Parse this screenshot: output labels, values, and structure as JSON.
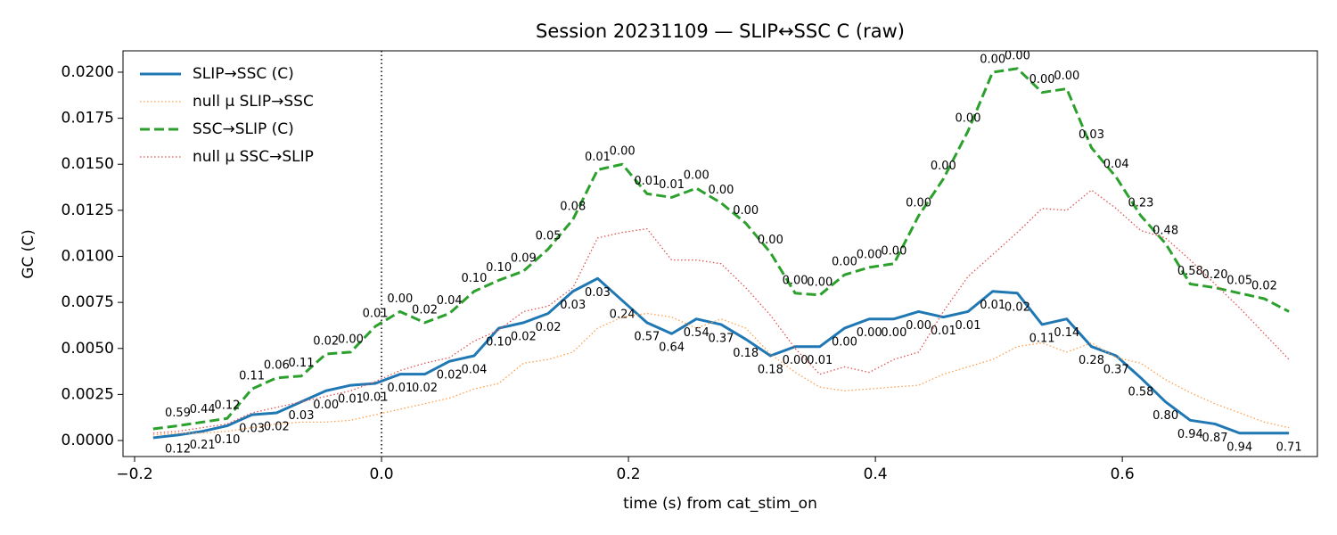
{
  "chart_data": {
    "type": "line",
    "title": "Session 20231109 — SLIP↔SSC C (raw)",
    "x_label": "time (s) from cat_stim_on",
    "y_label": "GC (C)",
    "x": [
      -0.185,
      -0.165,
      -0.145,
      -0.125,
      -0.105,
      -0.085,
      -0.065,
      -0.045,
      -0.025,
      -0.005,
      0.015,
      0.035,
      0.055,
      0.075,
      0.095,
      0.115,
      0.135,
      0.155,
      0.175,
      0.195,
      0.215,
      0.235,
      0.255,
      0.275,
      0.295,
      0.315,
      0.335,
      0.355,
      0.375,
      0.395,
      0.415,
      0.435,
      0.455,
      0.475,
      0.495,
      0.515,
      0.535,
      0.555,
      0.575,
      0.595,
      0.615,
      0.635,
      0.655,
      0.675,
      0.695,
      0.715,
      0.735
    ],
    "xlim": [
      -0.2094,
      0.758
    ],
    "xticks": [
      {
        "value": -0.2,
        "label": "−0.2"
      },
      {
        "value": 0,
        "label": "0.0"
      },
      {
        "value": 0.2,
        "label": "0.2"
      },
      {
        "value": 0.4,
        "label": "0.4"
      },
      {
        "value": 0.6,
        "label": "0.6"
      }
    ],
    "ylim": [
      -0.00087,
      0.02116
    ],
    "yticks": [
      {
        "value": 0,
        "label": "0.0000"
      },
      {
        "value": 0.0025,
        "label": "0.0025"
      },
      {
        "value": 0.005,
        "label": "0.0050"
      },
      {
        "value": 0.0075,
        "label": "0.0075"
      },
      {
        "value": 0.01,
        "label": "0.0100"
      },
      {
        "value": 0.0125,
        "label": "0.0125"
      },
      {
        "value": 0.015,
        "label": "0.0150"
      },
      {
        "value": 0.0175,
        "label": "0.0175"
      },
      {
        "value": 0.02,
        "label": "0.0200"
      }
    ],
    "vline": 0,
    "grid": false,
    "legend": "upper left",
    "series": [
      {
        "name": "SLIP→SSC (C)",
        "color": "#1f77b4",
        "style": "solid",
        "width": 3,
        "values": [
          0.00015,
          0.0003,
          0.0005,
          0.0008,
          0.0014,
          0.0015,
          0.0021,
          0.0027,
          0.003,
          0.0031,
          0.0036,
          0.0036,
          0.0043,
          0.0046,
          0.0061,
          0.0064,
          0.0069,
          0.0081,
          0.0088,
          0.0076,
          0.0064,
          0.0058,
          0.0066,
          0.0063,
          0.0055,
          0.0046,
          0.0051,
          0.0051,
          0.0061,
          0.0066,
          0.0066,
          0.007,
          0.0067,
          0.007,
          0.0081,
          0.008,
          0.0063,
          0.0066,
          0.0051,
          0.0046,
          0.0034,
          0.0021,
          0.0011,
          0.0009,
          0.0004,
          0.0004,
          0.0004
        ],
        "point_labels": [
          null,
          "0.12",
          "0.21",
          "0.10",
          "0.03",
          "0.02",
          "0.03",
          "0.00",
          "0.01",
          "0.01",
          "0.01",
          "0.02",
          "0.02",
          "0.04",
          "0.10",
          "0.02",
          "0.02",
          "0.03",
          "0.03",
          "0.24",
          "0.57",
          "0.64",
          "0.54",
          "0.37",
          "0.18",
          "0.18",
          "0.00",
          "0.01",
          "0.00",
          "0.00",
          "0.00",
          "0.00",
          "0.01",
          "0.01",
          "0.01",
          "0.02",
          "0.11",
          "0.14",
          "0.28",
          "0.37",
          "0.58",
          "0.80",
          "0.94",
          "0.87",
          "0.94",
          null,
          "0.71"
        ]
      },
      {
        "name": "null µ SLIP→SSC",
        "color": "#ff9f4a",
        "style": "dotted",
        "width": 1.3,
        "values": [
          0.0003,
          0.0004,
          0.0004,
          0.0005,
          0.0007,
          0.0009,
          0.001,
          0.001,
          0.0011,
          0.0014,
          0.0017,
          0.002,
          0.0023,
          0.0028,
          0.0031,
          0.0042,
          0.0044,
          0.0048,
          0.0061,
          0.0067,
          0.0069,
          0.0067,
          0.0061,
          0.0066,
          0.0061,
          0.0047,
          0.0037,
          0.0029,
          0.0027,
          0.0028,
          0.0029,
          0.003,
          0.0036,
          0.004,
          0.0044,
          0.0051,
          0.0053,
          0.0048,
          0.0053,
          0.0045,
          0.0042,
          0.0033,
          0.0026,
          0.002,
          0.0015,
          0.001,
          0.0007
        ]
      },
      {
        "name": "SSC→SLIP (C)",
        "color": "#2ca02c",
        "style": "dashed",
        "width": 3,
        "values": [
          0.00063,
          0.0008,
          0.001,
          0.0012,
          0.0028,
          0.0034,
          0.0035,
          0.0047,
          0.0048,
          0.0062,
          0.007,
          0.0064,
          0.0069,
          0.0081,
          0.0087,
          0.0092,
          0.0104,
          0.012,
          0.0147,
          0.015,
          0.0134,
          0.0132,
          0.0137,
          0.0129,
          0.0118,
          0.0102,
          0.008,
          0.0079,
          0.009,
          0.0094,
          0.0096,
          0.0122,
          0.0142,
          0.0168,
          0.02,
          0.0202,
          0.0189,
          0.0191,
          0.0159,
          0.0143,
          0.0122,
          0.0107,
          0.0085,
          0.0083,
          0.008,
          0.0077,
          0.007
        ],
        "point_labels": [
          null,
          "0.59",
          "0.44",
          "0.12",
          "0.11",
          "0.06",
          "0.11",
          "0.02",
          "0.00",
          "0.01",
          "0.00",
          "0.02",
          "0.04",
          "0.10",
          "0.10",
          "0.09",
          "0.05",
          "0.08",
          "0.01",
          "0.00",
          "0.01",
          "0.01",
          "0.00",
          "0.00",
          "0.00",
          "0.00",
          "0.00",
          "0.00",
          "0.00",
          "0.00",
          "0.00",
          "0.00",
          "0.00",
          "0.00",
          "0.00",
          "0.00",
          "0.00",
          "0.00",
          "0.03",
          "0.04",
          "0.23",
          "0.48",
          "0.58",
          "0.20",
          "0.05",
          "0.02",
          null
        ]
      },
      {
        "name": "null µ SSC→SLIP",
        "color": "#e05252",
        "style": "dotted",
        "width": 1.3,
        "values": [
          0.0004,
          0.0005,
          0.0007,
          0.0009,
          0.0015,
          0.0018,
          0.0021,
          0.0024,
          0.0027,
          0.0032,
          0.0038,
          0.0042,
          0.0045,
          0.0054,
          0.006,
          0.007,
          0.0073,
          0.0083,
          0.011,
          0.0113,
          0.0115,
          0.0098,
          0.0098,
          0.0096,
          0.0083,
          0.0068,
          0.005,
          0.0036,
          0.004,
          0.0037,
          0.0044,
          0.0048,
          0.007,
          0.0089,
          0.0101,
          0.0113,
          0.0126,
          0.0125,
          0.0136,
          0.0126,
          0.0114,
          0.011,
          0.0098,
          0.0085,
          0.0072,
          0.0058,
          0.0044
        ]
      }
    ]
  }
}
